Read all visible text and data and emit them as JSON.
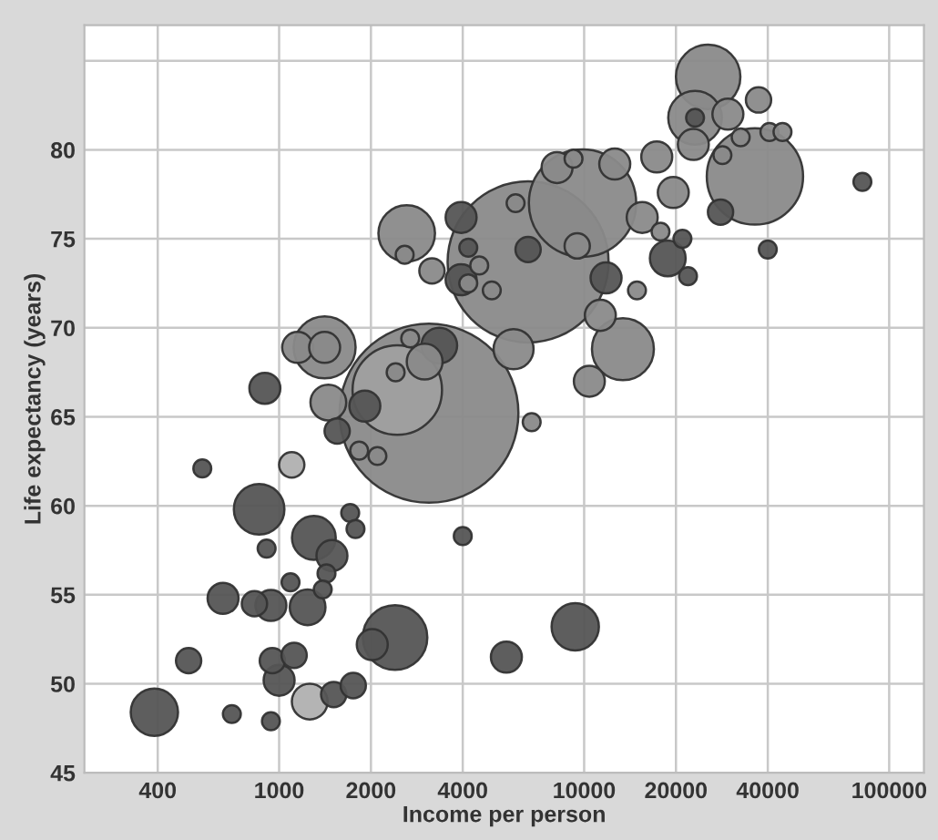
{
  "chart_data": {
    "type": "bubble",
    "xlabel": "Income per person",
    "ylabel": "Life expectancy (years)",
    "log": "x",
    "grid": true,
    "xlim": [
      230,
      130000
    ],
    "ylim": [
      45,
      87
    ],
    "xticks": [
      400,
      1000,
      2000,
      4000,
      10000,
      20000,
      40000,
      100000
    ],
    "yticks": [
      45,
      50,
      55,
      60,
      65,
      70,
      75,
      80,
      {
        "value": 85,
        "label": null
      }
    ],
    "x": [
      390,
      505,
      560,
      655,
      700,
      860,
      830,
      940,
      910,
      940,
      950,
      1120,
      1000,
      1260,
      1510,
      1750,
      1100,
      1710,
      1780,
      1300,
      1490,
      1430,
      1090,
      1390,
      1240,
      2400,
      2020,
      4000,
      9350,
      5560,
      3100,
      6550,
      2620,
      2580,
      3170,
      3950,
      4170,
      3950,
      1410,
      1150,
      1410,
      3350,
      2690,
      3000,
      2410,
      898,
      1910,
      1450,
      2440,
      1550,
      2100,
      1830,
      25500,
      37300,
      23100,
      23100,
      29600,
      22800,
      28400,
      32600,
      40500,
      44700,
      36300,
      17300,
      19600,
      28000,
      40000,
      81700,
      12600,
      8150,
      9230,
      9880,
      5960,
      13400,
      10400,
      6730,
      18800,
      21900,
      21000,
      15500,
      17800,
      9490,
      11800,
      14900,
      6550,
      4980,
      4170,
      4530,
      5870,
      11300
    ],
    "values": [
      48.4,
      51.3,
      62.1,
      54.8,
      48.3,
      59.8,
      54.5,
      54.4,
      57.6,
      47.9,
      51.3,
      51.6,
      50.2,
      49.0,
      49.4,
      49.9,
      62.3,
      59.6,
      58.7,
      58.2,
      57.2,
      56.2,
      55.7,
      55.3,
      54.3,
      52.6,
      52.2,
      58.3,
      53.2,
      51.5,
      65.2,
      73.7,
      75.3,
      74.1,
      73.2,
      76.2,
      74.5,
      72.7,
      68.9,
      68.9,
      68.9,
      69.0,
      69.4,
      68.1,
      67.5,
      66.6,
      65.6,
      65.8,
      66.5,
      64.2,
      62.8,
      63.1,
      84.1,
      82.8,
      81.8,
      81.8,
      82.0,
      80.3,
      79.7,
      80.7,
      81.0,
      81.0,
      78.5,
      79.6,
      77.6,
      76.5,
      74.4,
      78.2,
      79.2,
      79.0,
      79.5,
      77.0,
      77.0,
      68.8,
      67.0,
      64.7,
      73.9,
      72.9,
      75.0,
      76.2,
      75.4,
      74.6,
      72.8,
      72.1,
      74.4,
      72.1,
      72.5,
      73.5,
      68.8,
      70.7
    ],
    "sizes": [
      0.07,
      0.02,
      0.01,
      0.03,
      0.01,
      0.08,
      0.02,
      0.03,
      0.01,
      0.01,
      0.02,
      0.02,
      0.03,
      0.04,
      0.02,
      0.02,
      0.02,
      0.01,
      0.01,
      0.06,
      0.03,
      0.01,
      0.01,
      0.01,
      0.04,
      0.13,
      0.03,
      0.01,
      0.07,
      0.03,
      1.0,
      0.81,
      0.1,
      0.01,
      0.02,
      0.03,
      0.01,
      0.03,
      0.12,
      0.03,
      0.03,
      0.04,
      0.01,
      0.04,
      0.01,
      0.03,
      0.03,
      0.04,
      0.25,
      0.02,
      0.01,
      0.01,
      0.13,
      0.02,
      0.09,
      0.01,
      0.03,
      0.03,
      0.01,
      0.01,
      0.01,
      0.01,
      0.29,
      0.03,
      0.03,
      0.02,
      0.01,
      0.01,
      0.03,
      0.03,
      0.01,
      0.36,
      0.01,
      0.12,
      0.03,
      0.01,
      0.04,
      0.01,
      0.01,
      0.03,
      0.01,
      0.02,
      0.03,
      0.01,
      0.02,
      0.01,
      0.01,
      0.01,
      0.05,
      0.03
    ],
    "colors": [
      "#555555",
      "#555555",
      "#555555",
      "#555555",
      "#555555",
      "#555555",
      "#555555",
      "#555555",
      "#555555",
      "#555555",
      "#555555",
      "#555555",
      "#555555",
      "#b0b0b0",
      "#555555",
      "#555555",
      "#b0b0b0",
      "#555555",
      "#555555",
      "#555555",
      "#555555",
      "#555555",
      "#555555",
      "#555555",
      "#555555",
      "#555555",
      "#555555",
      "#555555",
      "#555555",
      "#555555",
      "#8a8a8a",
      "#8a8a8a",
      "#8a8a8a",
      "#8a8a8a",
      "#8a8a8a",
      "#555555",
      "#555555",
      "#555555",
      "#8a8a8a",
      "#8a8a8a",
      "#8a8a8a",
      "#555555",
      "#8a8a8a",
      "#8a8a8a",
      "#8a8a8a",
      "#555555",
      "#555555",
      "#8a8a8a",
      "#a0a0a0",
      "#555555",
      "#8a8a8a",
      "#8a8a8a",
      "#8a8a8a",
      "#8a8a8a",
      "#8a8a8a",
      "#555555",
      "#8a8a8a",
      "#8a8a8a",
      "#8a8a8a",
      "#8a8a8a",
      "#8a8a8a",
      "#8a8a8a",
      "#8a8a8a",
      "#8a8a8a",
      "#8a8a8a",
      "#555555",
      "#555555",
      "#555555",
      "#8a8a8a",
      "#8a8a8a",
      "#8a8a8a",
      "#8a8a8a",
      "#8a8a8a",
      "#8a8a8a",
      "#8a8a8a",
      "#8a8a8a",
      "#555555",
      "#555555",
      "#555555",
      "#8a8a8a",
      "#8a8a8a",
      "#8a8a8a",
      "#555555",
      "#8a8a8a",
      "#555555",
      "#8a8a8a",
      "#8a8a8a",
      "#8a8a8a",
      "#8a8a8a",
      "#8a8a8a"
    ]
  }
}
